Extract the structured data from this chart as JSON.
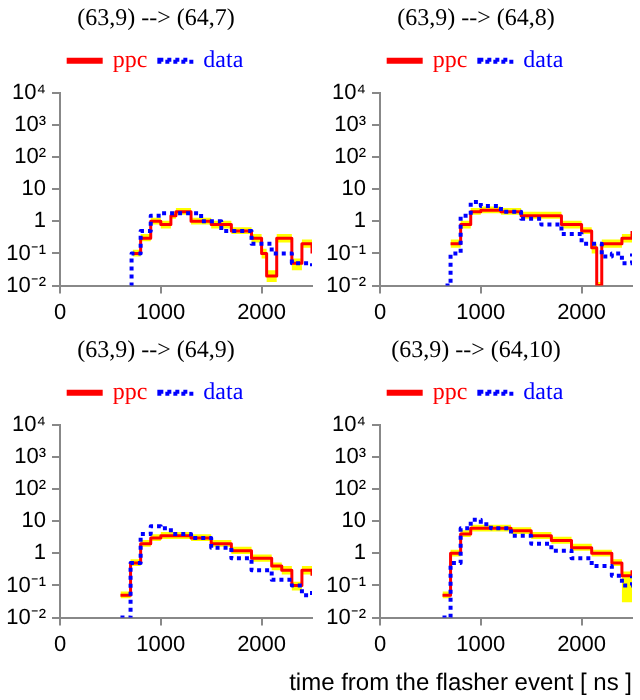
{
  "chart_data": [
    {
      "type": "step",
      "title": "(63,9) --> (64,7)",
      "log": "y",
      "xlim": [
        0,
        2500
      ],
      "xticks": [
        0,
        1000,
        2000
      ],
      "ylim": [
        0.01,
        10000
      ],
      "yticks": [
        {
          "value": 0.01,
          "label": "10⁻²"
        },
        {
          "value": 0.1,
          "label": "10⁻¹"
        },
        {
          "value": 1,
          "label": "1"
        },
        {
          "value": 10,
          "label": "10"
        },
        {
          "value": 100,
          "label": "10²"
        },
        {
          "value": 1000,
          "label": "10³"
        },
        {
          "value": 10000,
          "label": "10⁴"
        }
      ],
      "legend": "top",
      "grid": false,
      "series": [
        {
          "name": "ppc",
          "color": "#ff0000",
          "line_style": "solid",
          "x": [
            720,
            800,
            900,
            1000,
            1100,
            1150,
            1300,
            1500,
            1700,
            1900,
            2000,
            2050,
            2150,
            2300,
            2400,
            2500
          ],
          "values": [
            0.1,
            0.3,
            1,
            0.8,
            1.5,
            2,
            1,
            0.8,
            0.5,
            0.3,
            0.1,
            0.02,
            0.3,
            0.05,
            0.2,
            0.1
          ],
          "lower": [
            0.08,
            0.24,
            0.8,
            0.6,
            1.2,
            1.6,
            0.8,
            0.6,
            0.4,
            0.22,
            0.07,
            0.013,
            0.22,
            0.03,
            0.15,
            0.07
          ],
          "upper": [
            0.13,
            0.4,
            1.3,
            1.05,
            2,
            2.6,
            1.3,
            1.05,
            0.65,
            0.4,
            0.14,
            0.03,
            0.4,
            0.07,
            0.27,
            0.13
          ]
        },
        {
          "name": "data",
          "color": "#0000ff",
          "line_style": "dotted",
          "x": [
            700,
            710,
            800,
            900,
            1000,
            1100,
            1400,
            1600,
            1900,
            2100,
            2300,
            2500
          ],
          "values": [
            0.01,
            0.1,
            0.5,
            1.5,
            1.8,
            1.8,
            1,
            0.5,
            0.2,
            0.1,
            0.05,
            0.04
          ]
        }
      ]
    },
    {
      "type": "step",
      "title": "(63,9) --> (64,8)",
      "log": "y",
      "xlim": [
        0,
        2500
      ],
      "xticks": [
        0,
        1000,
        2000
      ],
      "ylim": [
        0.01,
        10000
      ],
      "yticks": [
        {
          "value": 0.01,
          "label": "10⁻²"
        },
        {
          "value": 0.1,
          "label": "10⁻¹"
        },
        {
          "value": 1,
          "label": "1"
        },
        {
          "value": 10,
          "label": "10"
        },
        {
          "value": 100,
          "label": "10²"
        },
        {
          "value": 1000,
          "label": "10³"
        },
        {
          "value": 10000,
          "label": "10⁴"
        }
      ],
      "legend": "top",
      "grid": false,
      "series": [
        {
          "name": "ppc",
          "color": "#ff0000",
          "line_style": "solid",
          "x": [
            700,
            800,
            900,
            1000,
            1200,
            1400,
            1600,
            1800,
            2000,
            2100,
            2150,
            2200,
            2300,
            2400,
            2500
          ],
          "values": [
            0.2,
            0.8,
            2,
            2.2,
            2,
            1.5,
            1.5,
            0.8,
            0.5,
            0.15,
            0.01,
            0.2,
            0.2,
            0.3,
            0.5
          ],
          "lower": [
            0.15,
            0.6,
            1.6,
            1.8,
            1.6,
            1.2,
            1.2,
            0.6,
            0.4,
            0.1,
            0.01,
            0.15,
            0.15,
            0.22,
            0.4
          ],
          "upper": [
            0.27,
            1.05,
            2.6,
            2.9,
            2.6,
            2,
            2,
            1.05,
            0.65,
            0.2,
            0.013,
            0.27,
            0.27,
            0.4,
            0.65
          ]
        },
        {
          "name": "data",
          "color": "#0000ff",
          "line_style": "dotted",
          "x": [
            650,
            700,
            800,
            900,
            1000,
            1200,
            1400,
            1600,
            1800,
            2000,
            2200,
            2300,
            2400,
            2500
          ],
          "values": [
            0.01,
            0.1,
            1.5,
            4,
            3,
            2,
            1.2,
            0.8,
            0.4,
            0.2,
            0.08,
            0.1,
            0.05,
            0.1
          ]
        }
      ]
    },
    {
      "type": "step",
      "title": "(63,9) --> (64,9)",
      "log": "y",
      "xlim": [
        0,
        2500
      ],
      "xticks": [
        0,
        1000,
        2000
      ],
      "ylim": [
        0.01,
        10000
      ],
      "yticks": [
        {
          "value": 0.01,
          "label": "10⁻²"
        },
        {
          "value": 0.1,
          "label": "10⁻¹"
        },
        {
          "value": 1,
          "label": "1"
        },
        {
          "value": 10,
          "label": "10"
        },
        {
          "value": 100,
          "label": "10²"
        },
        {
          "value": 1000,
          "label": "10³"
        },
        {
          "value": 10000,
          "label": "10⁴"
        }
      ],
      "legend": "top",
      "grid": false,
      "series": [
        {
          "name": "ppc",
          "color": "#ff0000",
          "line_style": "solid",
          "x": [
            600,
            700,
            800,
            900,
            1000,
            1100,
            1300,
            1500,
            1700,
            1900,
            2100,
            2200,
            2300,
            2400,
            2500
          ],
          "values": [
            0.05,
            0.5,
            2,
            3,
            3.5,
            3.5,
            3,
            2,
            1.2,
            0.7,
            0.4,
            0.3,
            0.1,
            0.3,
            0.2
          ],
          "lower": [
            0.04,
            0.4,
            1.6,
            2.4,
            2.8,
            2.8,
            2.4,
            1.6,
            0.95,
            0.55,
            0.3,
            0.22,
            0.07,
            0.22,
            0.15
          ],
          "upper": [
            0.065,
            0.65,
            2.6,
            3.9,
            4.6,
            4.6,
            3.9,
            2.6,
            1.6,
            0.92,
            0.52,
            0.4,
            0.13,
            0.4,
            0.26
          ]
        },
        {
          "name": "data",
          "color": "#0000ff",
          "line_style": "dotted",
          "x": [
            600,
            700,
            800,
            900,
            1000,
            1100,
            1300,
            1500,
            1700,
            1900,
            2100,
            2300,
            2400,
            2500
          ],
          "values": [
            0.01,
            0.5,
            4,
            7,
            6,
            4,
            3,
            1.5,
            0.7,
            0.3,
            0.15,
            0.1,
            0.05,
            0.08
          ]
        }
      ]
    },
    {
      "type": "step",
      "title": "(63,9) --> (64,10)",
      "xlabel": "time from the flasher event [ ns ]",
      "log": "y",
      "xlim": [
        0,
        2500
      ],
      "xticks": [
        0,
        1000,
        2000
      ],
      "ylim": [
        0.01,
        10000
      ],
      "yticks": [
        {
          "value": 0.01,
          "label": "10⁻²"
        },
        {
          "value": 0.1,
          "label": "10⁻¹"
        },
        {
          "value": 1,
          "label": "1"
        },
        {
          "value": 10,
          "label": "10"
        },
        {
          "value": 100,
          "label": "10²"
        },
        {
          "value": 1000,
          "label": "10³"
        },
        {
          "value": 10000,
          "label": "10⁴"
        }
      ],
      "legend": "top",
      "grid": false,
      "series": [
        {
          "name": "ppc",
          "color": "#ff0000",
          "line_style": "solid",
          "x": [
            620,
            700,
            800,
            900,
            1000,
            1100,
            1300,
            1500,
            1700,
            1900,
            2100,
            2300,
            2400,
            2500
          ],
          "values": [
            0.05,
            1,
            4,
            6,
            6,
            6,
            5,
            3.5,
            2.5,
            1.5,
            1,
            0.5,
            0.2,
            0.3
          ],
          "lower": [
            0.04,
            0.8,
            3.2,
            4.8,
            4.8,
            4.8,
            4,
            2.8,
            2,
            1.2,
            0.8,
            0.4,
            0.03,
            0.22
          ],
          "upper": [
            0.065,
            1.3,
            5.2,
            7.8,
            7.8,
            7.8,
            6.5,
            4.6,
            3.3,
            2,
            1.3,
            0.65,
            0.27,
            0.4
          ]
        },
        {
          "name": "data",
          "color": "#0000ff",
          "line_style": "dotted",
          "x": [
            620,
            700,
            800,
            900,
            1000,
            1100,
            1300,
            1500,
            1700,
            1900,
            2100,
            2300,
            2400,
            2500
          ],
          "values": [
            0.01,
            0.5,
            6,
            11,
            8,
            6,
            3.5,
            2,
            1.2,
            0.7,
            0.4,
            0.2,
            0.1,
            0.2
          ]
        }
      ]
    }
  ]
}
